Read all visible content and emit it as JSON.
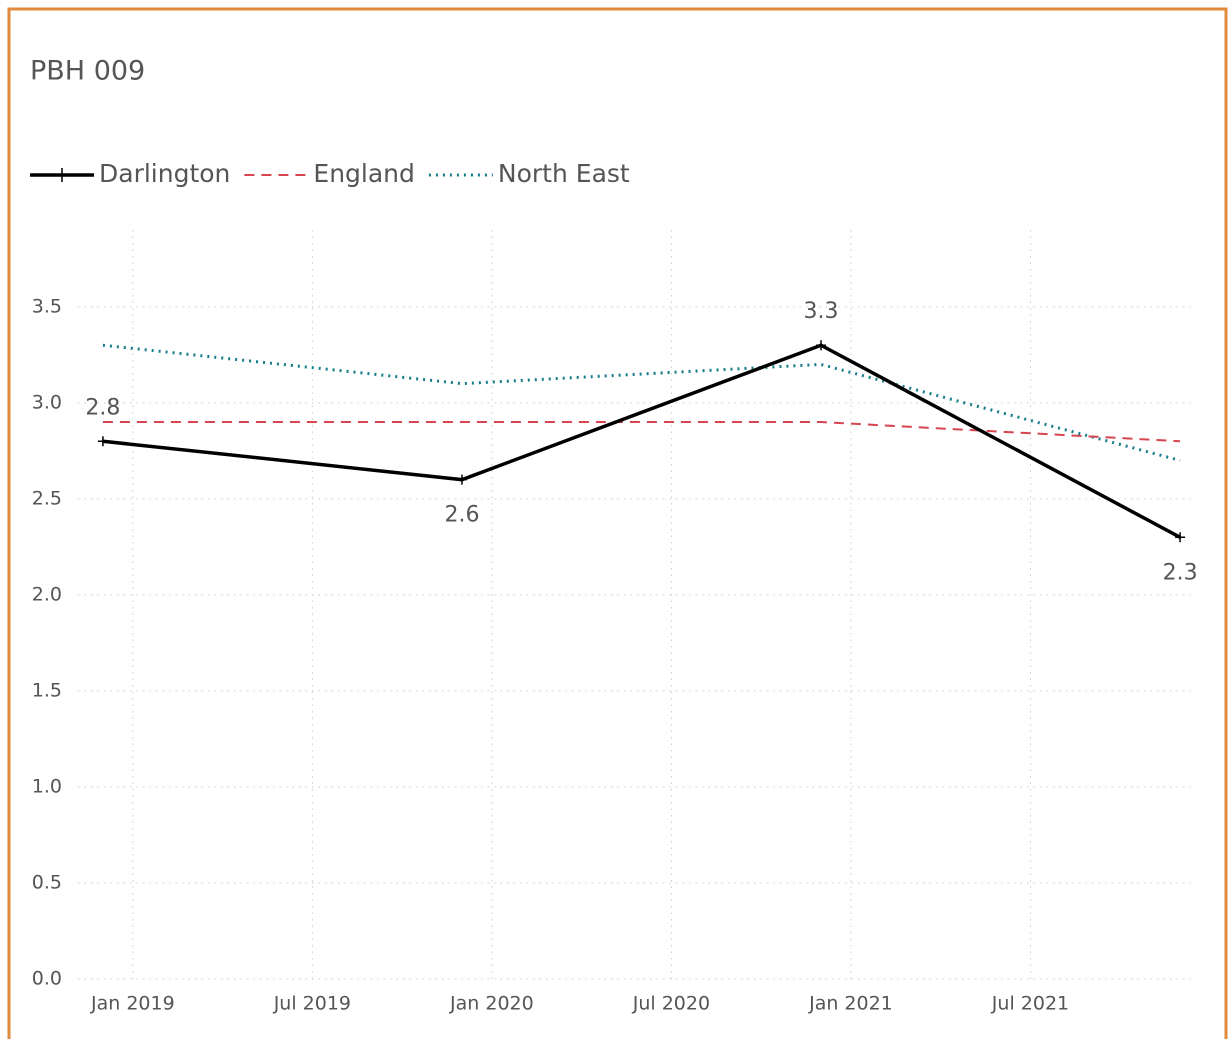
{
  "chart_data": {
    "type": "line",
    "title": "PBH 009",
    "x": [
      "2018-12",
      "2019-12",
      "2020-12",
      "2021-12"
    ],
    "xlim": [
      "2018-11",
      "2022-01"
    ],
    "xticks": [
      {
        "value": "2019-01",
        "label": "Jan 2019"
      },
      {
        "value": "2019-07",
        "label": "Jul 2019"
      },
      {
        "value": "2020-01",
        "label": "Jan 2020"
      },
      {
        "value": "2020-07",
        "label": "Jul 2020"
      },
      {
        "value": "2021-01",
        "label": "Jan 2021"
      },
      {
        "value": "2021-07",
        "label": "Jul 2021"
      }
    ],
    "ylim": [
      0,
      3.9
    ],
    "yticks": [
      {
        "value": 0,
        "label": "0.0"
      },
      0.5,
      {
        "value": 1,
        "label": "1.0"
      },
      1.5,
      {
        "value": 2,
        "label": "2.0"
      },
      2.5,
      {
        "value": 3,
        "label": "3.0"
      },
      3.5
    ],
    "grid": true,
    "legend": "top-left",
    "series": [
      {
        "name": "Darlington",
        "color": "#000000",
        "style": "solid",
        "values": [
          2.8,
          2.6,
          3.3,
          2.3
        ],
        "data_labels": true
      },
      {
        "name": "England",
        "color": "#d64550",
        "style": "dashed",
        "values": [
          2.9,
          2.9,
          2.9,
          2.8
        ]
      },
      {
        "name": "North East",
        "color": "#167c8c",
        "style": "dotted",
        "values": [
          3.3,
          3.1,
          3.2,
          2.7
        ]
      }
    ]
  }
}
